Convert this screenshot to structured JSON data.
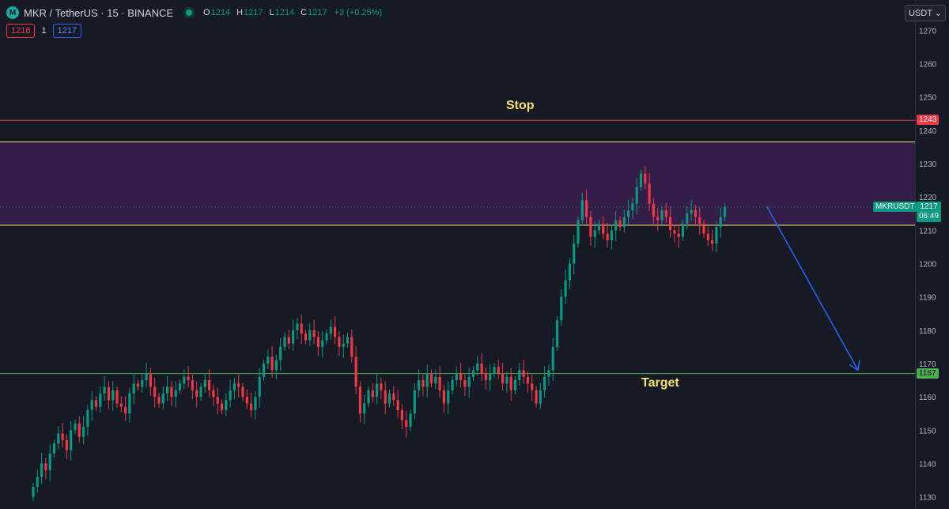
{
  "header": {
    "symbol": "MKR / TetherUS · 15 · BINANCE",
    "open_label": "O",
    "open": "1214",
    "high_label": "H",
    "high": "1217",
    "low_label": "L",
    "low": "1214",
    "close_label": "C",
    "close": "1217",
    "change": "+3 (+0.25%)",
    "sell_price": "1216",
    "spread": "1",
    "buy_price": "1217",
    "currency": "USDT"
  },
  "colors": {
    "background": "#161a25",
    "up": "#089981",
    "down": "#f23645",
    "zone_fill": "#3a1f4c",
    "zone_border": "#f7e16e",
    "stop_line": "#f23645",
    "target_line": "#4caf50",
    "arrow": "#2962ff",
    "label_text": "#f7e16e"
  },
  "annotations": {
    "stop_label": "Stop",
    "target_label": "Target",
    "stop_price_tag": "1243",
    "target_price_tag": "1167",
    "symbol_tag": "MKRUSDT",
    "last_price_tag": "1217",
    "countdown": "06:49",
    "zone_low": 1211.5,
    "zone_high": 1236.5,
    "arrow_start_price": 1217,
    "arrow_end_price": 1168
  },
  "chart_data": {
    "type": "candlestick",
    "y_axis_ticks": [
      "1270",
      "1260",
      "1250",
      "1240",
      "1230",
      "1220",
      "1210",
      "1200",
      "1190",
      "1180",
      "1170",
      "1160",
      "1150",
      "1140",
      "1130"
    ],
    "ylim": [
      1128,
      1272
    ],
    "grid": false,
    "closes": [
      1133,
      1136,
      1140,
      1138,
      1143,
      1146,
      1149,
      1147,
      1144,
      1150,
      1152,
      1148,
      1151,
      1156,
      1159,
      1157,
      1161,
      1163,
      1159,
      1162,
      1158,
      1157,
      1155,
      1161,
      1164,
      1163,
      1165,
      1167,
      1163,
      1160,
      1158,
      1161,
      1163,
      1160,
      1162,
      1164,
      1166,
      1165,
      1162,
      1160,
      1163,
      1165,
      1162,
      1160,
      1158,
      1156,
      1159,
      1162,
      1164,
      1163,
      1160,
      1158,
      1156,
      1160,
      1166,
      1170,
      1172,
      1168,
      1171,
      1175,
      1178,
      1176,
      1180,
      1182,
      1179,
      1177,
      1180,
      1178,
      1175,
      1177,
      1179,
      1181,
      1178,
      1175,
      1176,
      1178,
      1172,
      1163,
      1155,
      1158,
      1162,
      1160,
      1164,
      1162,
      1158,
      1161,
      1159,
      1156,
      1153,
      1151,
      1155,
      1162,
      1165,
      1163,
      1167,
      1164,
      1166,
      1162,
      1158,
      1162,
      1165,
      1167,
      1165,
      1163,
      1166,
      1168,
      1170,
      1167,
      1165,
      1167,
      1169,
      1167,
      1164,
      1166,
      1162,
      1165,
      1168,
      1166,
      1164,
      1162,
      1158,
      1162,
      1166,
      1168,
      1175,
      1183,
      1190,
      1195,
      1200,
      1206,
      1213,
      1219,
      1214,
      1208,
      1210,
      1212,
      1209,
      1207,
      1210,
      1213,
      1211,
      1214,
      1216,
      1218,
      1223,
      1227,
      1224,
      1218,
      1214,
      1213,
      1216,
      1214,
      1210,
      1209,
      1208,
      1212,
      1215,
      1216,
      1214,
      1212,
      1209,
      1207,
      1206,
      1211,
      1214,
      1217
    ]
  }
}
